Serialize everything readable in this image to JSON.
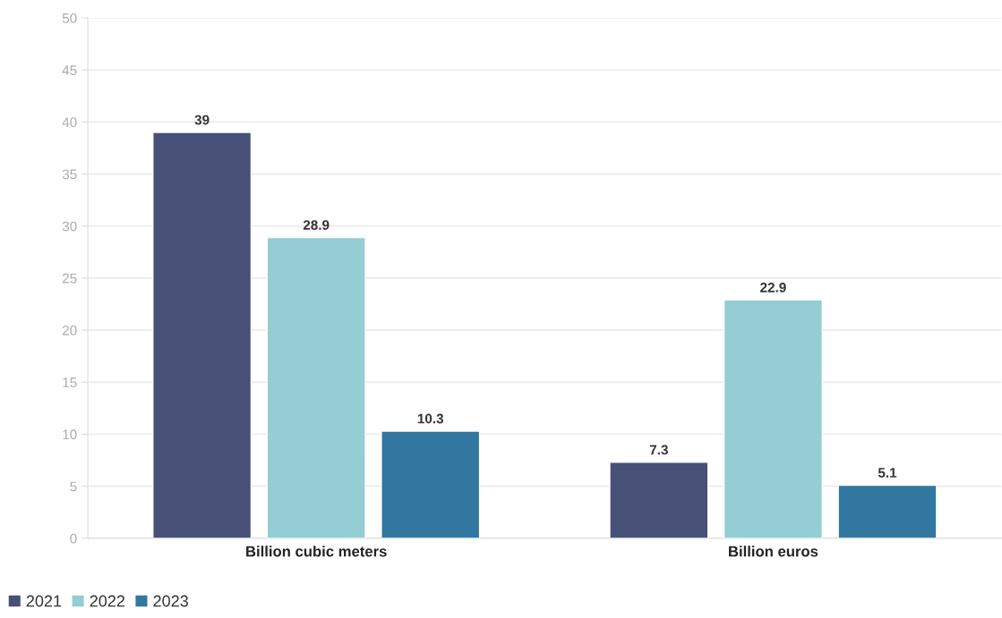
{
  "chart_data": {
    "type": "bar",
    "categories": [
      "Billion cubic meters",
      "Billion euros"
    ],
    "series": [
      {
        "name": "2021",
        "color": "#475077",
        "values": [
          39,
          7.3
        ]
      },
      {
        "name": "2022",
        "color": "#94cdd3",
        "values": [
          28.9,
          22.9
        ]
      },
      {
        "name": "2023",
        "color": "#31779f",
        "values": [
          10.3,
          5.1
        ]
      }
    ],
    "ylim": [
      0,
      50
    ],
    "yticks": [
      0,
      5,
      10,
      15,
      20,
      25,
      30,
      35,
      40,
      45,
      50
    ],
    "grid": "y",
    "legend": "bottom left",
    "data_labels": true
  }
}
